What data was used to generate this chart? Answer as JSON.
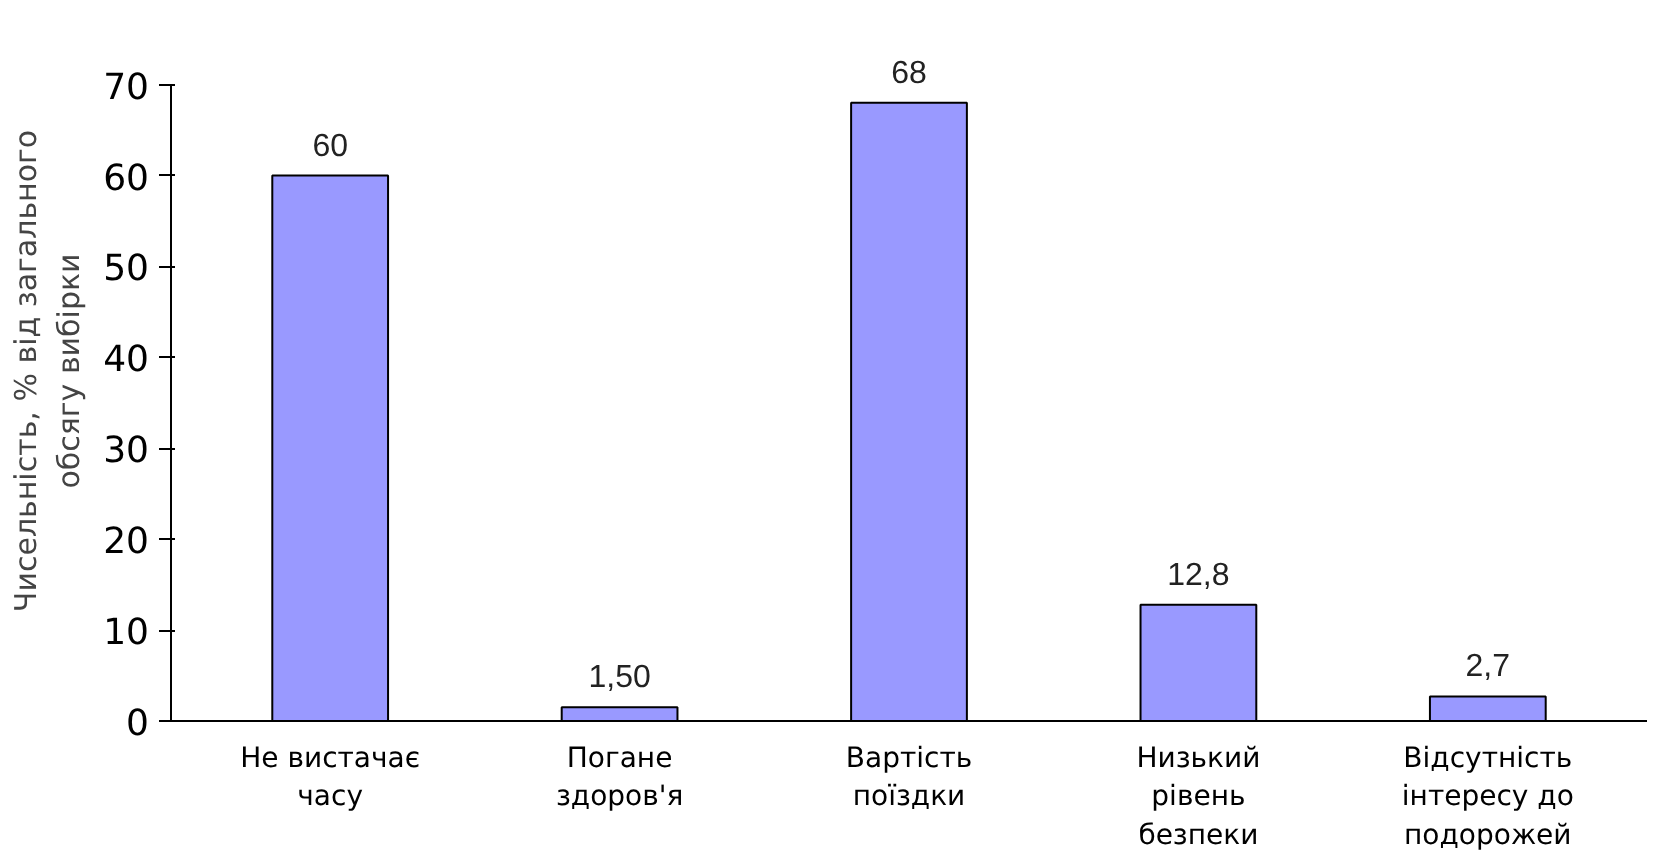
{
  "chart_data": {
    "type": "bar",
    "ylabel": "Чисельність, % від загального\nобсягу вибірки",
    "categories": [
      "Не вистачає\nчасу",
      "Погане\nздоров'я",
      "Вартість\nпоїздки",
      "Низький\nрівень\nбезпеки",
      "Відсутність\nінтересу до\nподорожей"
    ],
    "values": [
      60,
      1.5,
      68,
      12.8,
      2.7
    ],
    "value_labels": [
      "60",
      "1,50",
      "68",
      "12,8",
      "2,7"
    ],
    "color": "#9999ff",
    "ylim": [
      0,
      70
    ],
    "yticks": [
      0,
      10,
      20,
      30,
      40,
      50,
      60,
      70
    ],
    "grid": false
  }
}
